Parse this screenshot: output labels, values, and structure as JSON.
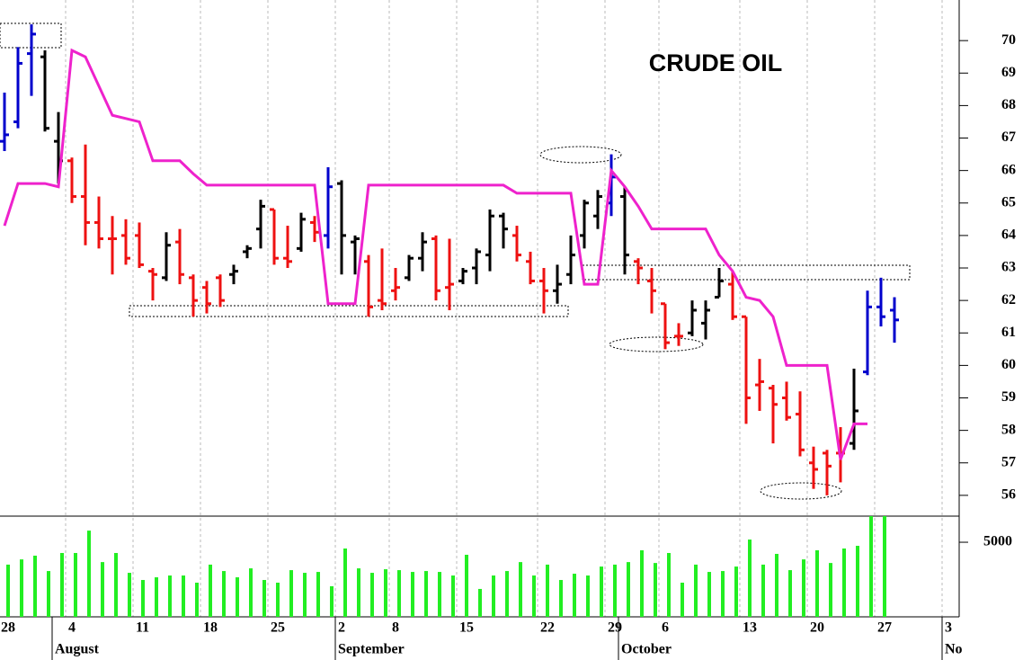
{
  "chart_data": {
    "type": "ohlc",
    "title": "CRUDE OIL",
    "categories": [
      "28",
      null,
      null,
      null,
      null,
      "4",
      null,
      null,
      null,
      null,
      "11",
      null,
      null,
      null,
      null,
      "18",
      null,
      null,
      null,
      null,
      "25",
      null,
      null,
      null,
      null,
      "2",
      null,
      null,
      null,
      "8",
      null,
      null,
      null,
      null,
      "15",
      null,
      null,
      null,
      null,
      null,
      "22",
      null,
      null,
      null,
      null,
      "29",
      null,
      null,
      null,
      "6",
      null,
      null,
      null,
      null,
      null,
      "13",
      null,
      null,
      null,
      null,
      "20",
      null,
      null,
      null,
      null,
      "27",
      null,
      null,
      null,
      null,
      "3"
    ],
    "months": [
      null,
      null,
      null,
      null,
      "August",
      null,
      null,
      null,
      null,
      null,
      null,
      null,
      null,
      null,
      null,
      null,
      null,
      null,
      null,
      null,
      null,
      null,
      null,
      null,
      null,
      "September",
      null,
      null,
      null,
      null,
      null,
      null,
      null,
      null,
      null,
      null,
      null,
      null,
      null,
      null,
      null,
      null,
      null,
      null,
      null,
      null,
      "October",
      null,
      null,
      null,
      null,
      null,
      null,
      null,
      null,
      null,
      null,
      null,
      null,
      null,
      null,
      null,
      null,
      null,
      null,
      null,
      null,
      null,
      null,
      null,
      "No"
    ],
    "open": [
      66.9,
      67.5,
      69.6,
      69.5,
      66.9,
      66.3,
      65.2,
      64.4,
      63.9,
      64.0,
      64.0,
      62.9,
      62.7,
      63.8,
      62.7,
      62.4,
      62.7,
      62.8,
      63.5,
      64.2,
      64.8,
      63.3,
      63.6,
      64.4,
      64.0,
      65.6,
      63.8,
      63.2,
      62.0,
      62.3,
      62.7,
      63.3,
      63.9,
      62.4,
      62.6,
      63.0,
      63.4,
      64.6,
      64.0,
      63.2,
      62.6,
      62.3,
      62.8,
      64.0,
      64.6,
      65.0,
      65.2,
      63.2,
      62.6,
      61.9,
      60.9,
      61.0,
      61.3,
      62.1,
      62.5,
      61.5,
      59.4,
      59.3,
      59.0,
      58.5,
      57.0,
      57.3,
      57.3,
      57.6,
      59.8,
      61.8,
      61.7,
      null,
      null,
      null,
      null
    ],
    "high": [
      68.4,
      69.8,
      70.5,
      69.7,
      67.8,
      66.4,
      66.8,
      65.2,
      64.6,
      64.5,
      64.4,
      63.0,
      64.1,
      64.2,
      62.8,
      62.6,
      62.8,
      63.1,
      63.7,
      65.1,
      64.8,
      64.3,
      64.7,
      64.6,
      66.1,
      65.7,
      64.0,
      63.4,
      63.6,
      63.0,
      63.4,
      64.1,
      64.0,
      63.9,
      63.0,
      63.6,
      64.8,
      64.7,
      64.3,
      63.5,
      63.0,
      63.1,
      64.0,
      65.1,
      65.4,
      66.5,
      65.5,
      63.3,
      63.0,
      61.9,
      61.3,
      62.0,
      62.0,
      63.0,
      62.9,
      61.5,
      60.2,
      59.4,
      59.5,
      59.2,
      57.5,
      57.4,
      58.1,
      59.9,
      62.3,
      62.7,
      62.1,
      null,
      null,
      null,
      null
    ],
    "low": [
      66.6,
      67.3,
      68.3,
      67.2,
      65.6,
      65.0,
      63.7,
      63.6,
      62.8,
      63.1,
      63.0,
      62.0,
      62.6,
      62.5,
      61.5,
      61.6,
      61.8,
      62.5,
      63.3,
      63.6,
      63.1,
      63.0,
      63.5,
      63.8,
      63.6,
      62.8,
      62.8,
      61.5,
      61.7,
      62.0,
      62.6,
      62.9,
      62.0,
      61.7,
      62.5,
      62.5,
      62.9,
      63.6,
      63.2,
      62.5,
      61.6,
      61.9,
      62.5,
      63.6,
      64.2,
      64.6,
      62.8,
      62.5,
      61.6,
      60.5,
      60.6,
      60.9,
      60.8,
      62.1,
      61.4,
      58.2,
      58.6,
      57.6,
      58.3,
      57.2,
      56.2,
      56.0,
      56.4,
      57.4,
      59.7,
      61.2,
      60.7,
      null,
      null,
      null,
      null
    ],
    "close": [
      67.1,
      69.3,
      70.2,
      67.3,
      66.3,
      65.2,
      64.4,
      63.9,
      63.9,
      63.3,
      63.1,
      62.8,
      63.7,
      62.8,
      62.0,
      61.9,
      62.0,
      62.9,
      63.6,
      64.9,
      63.3,
      63.2,
      64.5,
      64.1,
      65.5,
      64.0,
      63.9,
      61.8,
      61.9,
      62.4,
      63.3,
      63.8,
      62.3,
      62.5,
      62.9,
      63.5,
      64.6,
      64.2,
      63.4,
      62.6,
      62.3,
      62.5,
      63.4,
      65.0,
      65.2,
      65.8,
      63.4,
      63.0,
      62.3,
      60.7,
      60.9,
      61.7,
      61.7,
      62.6,
      61.5,
      59.0,
      59.5,
      58.8,
      58.4,
      57.4,
      56.8,
      56.9,
      57.3,
      58.6,
      61.8,
      61.5,
      61.4,
      null,
      null,
      null,
      null
    ],
    "bar_colors": [
      "#0000cc",
      "#0000cc",
      "#0000cc",
      "#000000",
      "#000000",
      "#ee1111",
      "#ee1111",
      "#ee1111",
      "#ee1111",
      "#ee1111",
      "#ee1111",
      "#ee1111",
      "#000000",
      "#ee1111",
      "#ee1111",
      "#ee1111",
      "#ee1111",
      "#000000",
      "#000000",
      "#000000",
      "#ee1111",
      "#ee1111",
      "#000000",
      "#ee1111",
      "#0000cc",
      "#000000",
      "#000000",
      "#ee1111",
      "#ee1111",
      "#ee1111",
      "#000000",
      "#000000",
      "#ee1111",
      "#ee1111",
      "#000000",
      "#000000",
      "#000000",
      "#000000",
      "#ee1111",
      "#ee1111",
      "#ee1111",
      "#000000",
      "#000000",
      "#000000",
      "#000000",
      "#0000cc",
      "#000000",
      "#ee1111",
      "#ee1111",
      "#ee1111",
      "#ee1111",
      "#000000",
      "#000000",
      "#000000",
      "#ee1111",
      "#ee1111",
      "#ee1111",
      "#ee1111",
      "#ee1111",
      "#ee1111",
      "#ee1111",
      "#ee1111",
      "#ee1111",
      "#000000",
      "#0000cc",
      "#0000cc",
      "#0000cc",
      null,
      null,
      null,
      null
    ],
    "line": {
      "color": "#ee22cc",
      "values": [
        64.3,
        65.6,
        65.6,
        65.6,
        65.5,
        69.7,
        69.5,
        68.6,
        67.7,
        67.6,
        67.5,
        66.3,
        66.3,
        66.3,
        65.9,
        65.55,
        65.55,
        65.55,
        65.55,
        65.55,
        65.55,
        65.55,
        65.55,
        65.55,
        61.9,
        61.9,
        61.9,
        65.55,
        65.55,
        65.55,
        65.55,
        65.55,
        65.55,
        65.55,
        65.55,
        65.55,
        65.55,
        65.55,
        65.3,
        65.3,
        65.3,
        65.3,
        65.3,
        62.5,
        62.5,
        66.0,
        65.5,
        64.9,
        64.2,
        64.2,
        64.2,
        64.2,
        64.2,
        63.4,
        62.9,
        62.1,
        62.0,
        61.5,
        60.0,
        60.0,
        60.0,
        60.0,
        57.1,
        58.2,
        58.2,
        null,
        null,
        null,
        null,
        null,
        null
      ]
    },
    "ylim": [
      55.36,
      71.25
    ],
    "yticks": [
      56,
      57,
      58,
      59,
      60,
      61,
      62,
      63,
      64,
      65,
      66,
      67,
      68,
      69,
      70
    ],
    "volume": {
      "color": "#22ee22",
      "values": [
        3500,
        3850,
        4100,
        3070,
        4280,
        4280,
        5780,
        3670,
        4280,
        2950,
        2470,
        2650,
        2770,
        2770,
        2290,
        3500,
        3070,
        2650,
        3250,
        2470,
        2290,
        3130,
        2950,
        3010,
        2050,
        4580,
        3250,
        2950,
        3190,
        3130,
        3010,
        3070,
        3010,
        2770,
        4160,
        1870,
        2770,
        3070,
        3670,
        2770,
        3500,
        2470,
        2890,
        2770,
        3370,
        3500,
        3670,
        4460,
        3610,
        4280,
        2290,
        3500,
        3010,
        3070,
        3370,
        5180,
        3500,
        4220,
        3130,
        3850,
        4460,
        3610,
        4580,
        4760,
        6750,
        6750,
        null,
        null,
        null,
        null,
        null
      ],
      "ylim": [
        0,
        6750
      ],
      "yticks": [
        5000
      ]
    },
    "grid": true
  }
}
